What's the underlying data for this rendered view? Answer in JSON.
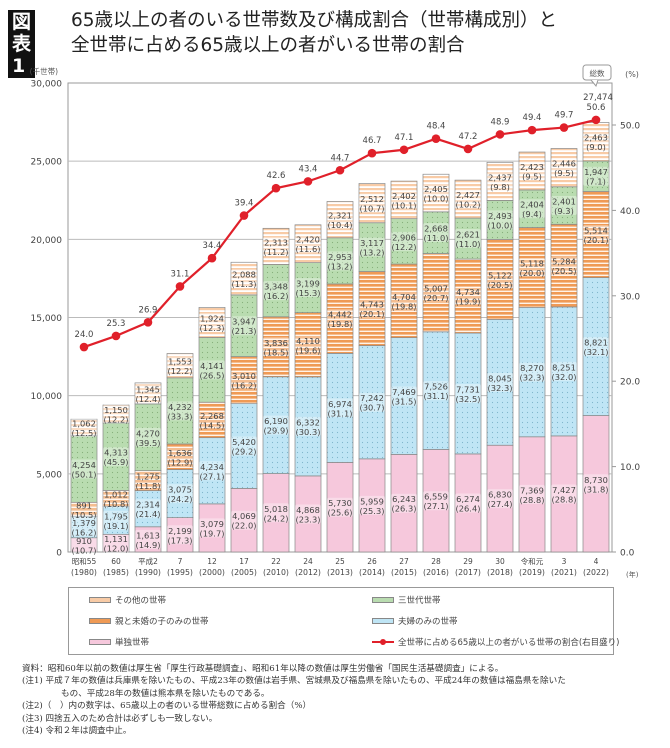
{
  "header": {
    "badge": "図表1",
    "title_line1": "65歳以上の者のいる世帯数及び構成割合（世帯構成別）と",
    "title_line2": "全世帯に占める65歳以上の者がいる世帯の割合"
  },
  "chart_data": {
    "type": "bar",
    "stacked": true,
    "title": "65歳以上の者のいる世帯数及び構成割合（世帯構成別）と全世帯に占める65歳以上の者がいる世帯の割合",
    "ylabel_left": "(千世帯)",
    "ylabel_right": "(%)",
    "xlabel": "(年)",
    "ylim_left": [
      0,
      30000
    ],
    "yticks_left": [
      "0",
      "5,000",
      "10,000",
      "15,000",
      "20,000",
      "25,000",
      "30,000"
    ],
    "yticks_right": [
      "0.0",
      "10.0",
      "20.0",
      "30.0",
      "40.0",
      "50.0"
    ],
    "grid": true,
    "legend_position": "bottom",
    "categories": [
      {
        "era": "昭和55",
        "year": "(1980)"
      },
      {
        "era": "60",
        "year": "(1985)"
      },
      {
        "era": "平成2",
        "year": "(1990)"
      },
      {
        "era": "7",
        "year": "(1995)"
      },
      {
        "era": "12",
        "year": "(2000)"
      },
      {
        "era": "17",
        "year": "(2005)"
      },
      {
        "era": "22",
        "year": "(2010)"
      },
      {
        "era": "24",
        "year": "(2012)"
      },
      {
        "era": "25",
        "year": "(2013)"
      },
      {
        "era": "26",
        "year": "(2014)"
      },
      {
        "era": "27",
        "year": "(2015)"
      },
      {
        "era": "28",
        "year": "(2016)"
      },
      {
        "era": "29",
        "year": "(2017)"
      },
      {
        "era": "30",
        "year": "(2018)"
      },
      {
        "era": "令和元",
        "year": "(2019)"
      },
      {
        "era": "3",
        "year": "(2021)"
      },
      {
        "era": "4",
        "year": "(2022)"
      }
    ],
    "series": [
      {
        "name": "単独世帯",
        "color": "#f6c8dc",
        "values": [
          910,
          1131,
          1613,
          2199,
          3079,
          4069,
          5018,
          4868,
          5730,
          5959,
          6243,
          6559,
          6274,
          6830,
          7369,
          7427,
          8730
        ],
        "pct": [
          10.7,
          12.0,
          14.9,
          17.3,
          19.7,
          22.0,
          24.2,
          23.3,
          25.6,
          25.3,
          26.3,
          27.1,
          26.4,
          27.4,
          28.8,
          28.8,
          31.8
        ]
      },
      {
        "name": "夫婦のみの世帯",
        "color": "#bfe5f5",
        "values": [
          1379,
          1795,
          2314,
          3075,
          4234,
          5420,
          6190,
          6332,
          6974,
          7242,
          7469,
          7526,
          7731,
          8045,
          8270,
          8251,
          8821
        ],
        "pct": [
          16.2,
          19.1,
          21.4,
          24.2,
          27.1,
          29.2,
          29.9,
          30.3,
          31.1,
          30.7,
          31.5,
          31.1,
          32.5,
          32.3,
          32.3,
          32.0,
          32.1
        ]
      },
      {
        "name": "親と未婚の子のみの世帯",
        "color": "#ef9a55",
        "values": [
          891,
          1012,
          1275,
          1636,
          2268,
          3010,
          3836,
          4110,
          4442,
          4743,
          4704,
          5007,
          4734,
          5122,
          5118,
          5284,
          5514
        ],
        "pct": [
          10.5,
          10.8,
          11.8,
          12.9,
          14.5,
          16.2,
          18.5,
          19.6,
          19.8,
          20.1,
          19.8,
          20.7,
          19.9,
          20.5,
          20.0,
          20.5,
          20.1
        ]
      },
      {
        "name": "三世代世帯",
        "color": "#b9dcb0",
        "values": [
          4254,
          4313,
          4270,
          4232,
          4141,
          3947,
          3348,
          3199,
          2953,
          3117,
          2906,
          2668,
          2621,
          2493,
          2404,
          2401,
          1947
        ],
        "pct": [
          50.1,
          45.9,
          39.5,
          33.3,
          26.5,
          21.3,
          16.2,
          15.3,
          13.2,
          13.2,
          12.2,
          11.0,
          11.0,
          10.0,
          9.4,
          9.3,
          7.1
        ]
      },
      {
        "name": "その他の世帯",
        "color": "#f8cba6",
        "values": [
          1062,
          1150,
          1345,
          1553,
          1924,
          2088,
          2313,
          2420,
          2321,
          2512,
          2402,
          2405,
          2427,
          2437,
          2423,
          2446,
          2463
        ],
        "pct": [
          12.5,
          12.2,
          12.4,
          12.2,
          12.3,
          11.3,
          11.2,
          11.6,
          10.4,
          10.7,
          10.1,
          10.0,
          10.2,
          9.8,
          9.5,
          9.5,
          9.0
        ]
      }
    ],
    "line_series": {
      "name": "全世帯に占める65歳以上の者がいる世帯の割合（右目盛り）",
      "axis": "right",
      "color": "#e0202a",
      "values": [
        24.0,
        25.3,
        26.9,
        31.1,
        34.4,
        39.4,
        42.6,
        43.4,
        44.7,
        46.7,
        47.1,
        48.4,
        47.2,
        48.9,
        49.4,
        49.7,
        50.6
      ]
    },
    "annotation": {
      "label": "総数",
      "value": "27,474"
    }
  },
  "legend": {
    "items": [
      "その他の世帯",
      "三世代世帯",
      "親と未婚の子のみの世帯",
      "夫婦のみの世帯",
      "単独世帯",
      "全世帯に占める65歳以上の者がいる世帯の割合(右目盛り)"
    ]
  },
  "notes": [
    "資料：昭和60年以前の数値は厚生省「厚生行政基礎調査」、昭和61年以降の数値は厚生労働省「国民生活基礎調査」による。",
    "(注1) 平成７年の数値は兵庫県を除いたもの、平成23年の数値は岩手県、宮城県及び福島県を除いたもの、平成24年の数値は福島県を除いた",
    "もの、平成28年の数値は熊本県を除いたものである。",
    "(注2)（　）内の数字は、65歳以上の者のいる世帯総数に占める割合（%）",
    "(注3) 四捨五入のため合計は必ずしも一致しない。",
    "(注4) 令和２年は調査中止。"
  ]
}
